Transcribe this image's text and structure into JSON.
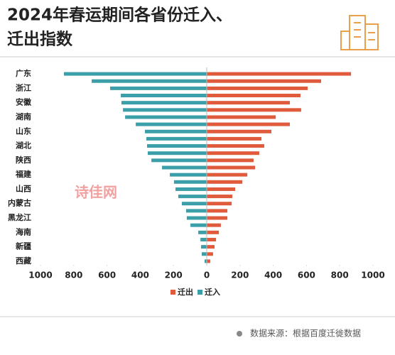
{
  "chart_data": {
    "type": "butterfly",
    "title_lines": [
      "2024年春运期间各省份迁入、",
      "迁出指数"
    ],
    "categories": [
      "广东",
      null,
      "浙江",
      null,
      "安徽",
      null,
      "湖南",
      null,
      "山东",
      null,
      "湖北",
      null,
      "陕西",
      null,
      "福建",
      null,
      "山西",
      null,
      "内蒙古",
      null,
      "黑龙江",
      null,
      "海南",
      null,
      "新疆",
      null,
      "西藏"
    ],
    "series": [
      {
        "name": "迁出",
        "color": "#e05a3c",
        "values": [
          868,
          688,
          607,
          564,
          500,
          568,
          415,
          500,
          389,
          329,
          346,
          316,
          282,
          291,
          244,
          214,
          171,
          154,
          150,
          124,
          124,
          85,
          73,
          56,
          47,
          38,
          21
        ]
      },
      {
        "name": "迁入",
        "color": "#3a9fa8",
        "values": [
          -859,
          -692,
          -581,
          -517,
          -513,
          -504,
          -491,
          -427,
          -372,
          -363,
          -359,
          -355,
          -333,
          -269,
          -222,
          -197,
          -188,
          -171,
          -150,
          -124,
          -120,
          -98,
          -51,
          -38,
          -34,
          -30,
          -13
        ]
      }
    ],
    "xlim": [
      -1000,
      1000
    ],
    "xticks": [
      {
        "value": -1000,
        "label": "1000"
      },
      {
        "value": -800,
        "label": "800"
      },
      {
        "value": -600,
        "label": "600"
      },
      {
        "value": -400,
        "label": "400"
      },
      {
        "value": -200,
        "label": "200"
      },
      0,
      200,
      400,
      600,
      800,
      1000
    ],
    "watermark": "诗佳网",
    "source": "数据来源：根据百度迁徙数据"
  }
}
